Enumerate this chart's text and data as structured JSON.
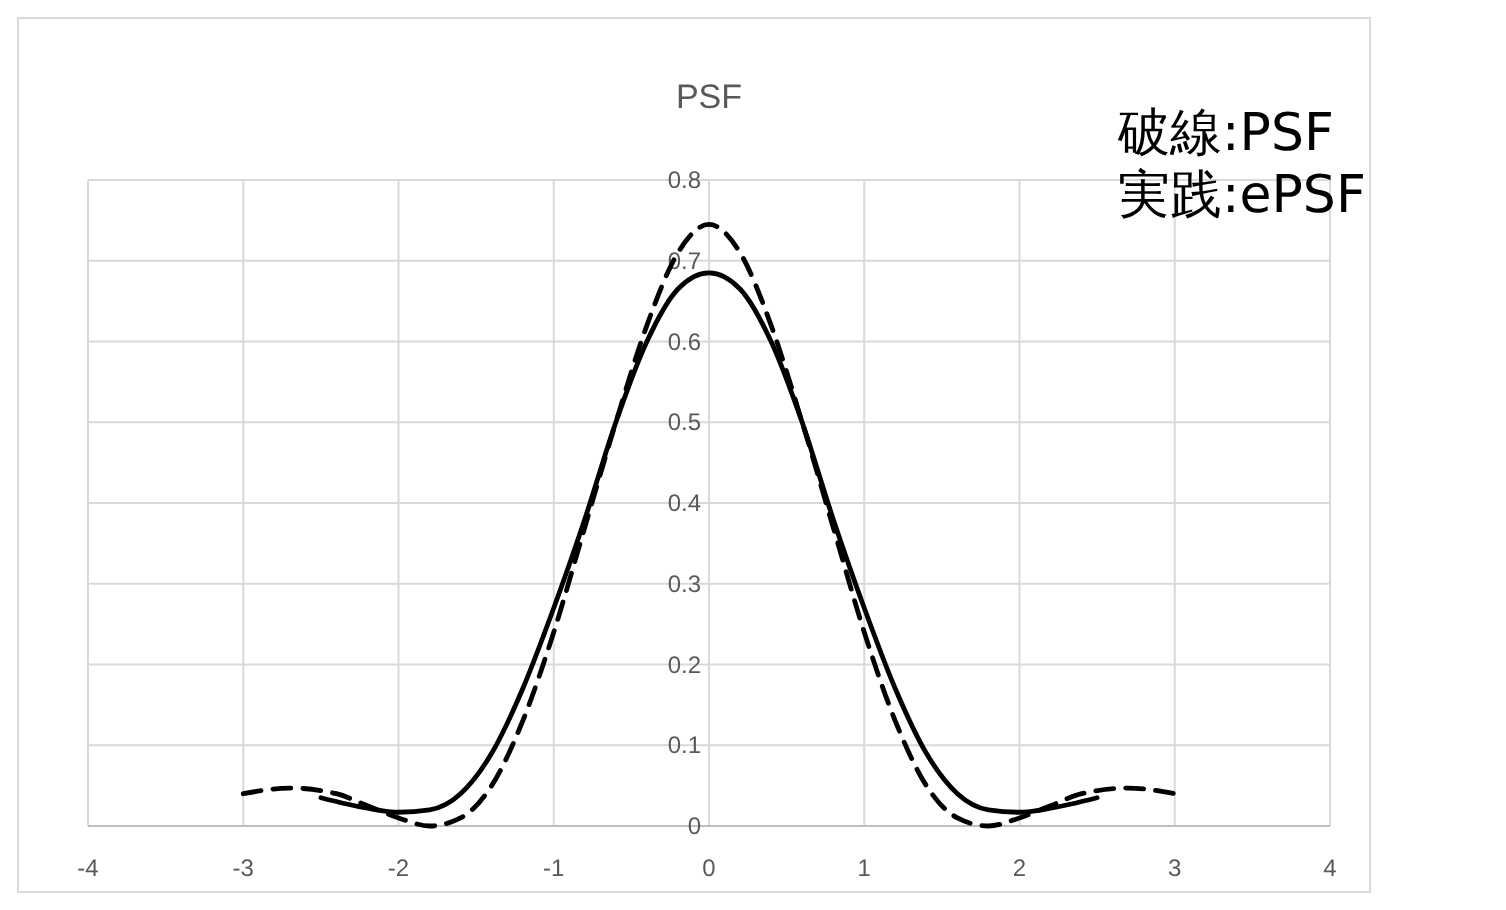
{
  "chart_data": {
    "type": "line",
    "title": "PSF",
    "xlim": [
      -4,
      4
    ],
    "xticks": [
      -4,
      -3,
      -2,
      -1,
      0,
      1,
      2,
      3,
      4
    ],
    "ylim": [
      0,
      0.8
    ],
    "yticks": [
      0,
      0.1,
      0.2,
      0.3,
      0.4,
      0.5,
      0.6,
      0.7,
      0.8
    ],
    "grid": true,
    "marker": "none",
    "annotations": [
      "破線:PSF",
      "実践:ePSF"
    ],
    "series": [
      {
        "color": "#000000",
        "line_style": "dashed",
        "x": [
          -3,
          -2.7,
          -2.4,
          -2.2,
          -2,
          -1.8,
          -1.6,
          -1.4,
          -1.2,
          -1,
          -0.8,
          -0.6,
          -0.4,
          -0.2,
          0,
          0.2,
          0.4,
          0.6,
          0.8,
          1,
          1.2,
          1.4,
          1.6,
          1.8,
          2,
          2.2,
          2.4,
          2.7,
          3
        ],
        "values": [
          0.04,
          0.047,
          0.04,
          0.025,
          0.01,
          0.0,
          0.01,
          0.05,
          0.13,
          0.24,
          0.37,
          0.5,
          0.62,
          0.71,
          0.745,
          0.71,
          0.62,
          0.5,
          0.37,
          0.24,
          0.13,
          0.05,
          0.01,
          0.0,
          0.01,
          0.025,
          0.04,
          0.047,
          0.04
        ]
      },
      {
        "color": "#000000",
        "line_style": "solid",
        "x": [
          -2.5,
          -2.2,
          -2,
          -1.8,
          -1.6,
          -1.4,
          -1.2,
          -1,
          -0.8,
          -0.6,
          -0.4,
          -0.2,
          0,
          0.2,
          0.4,
          0.6,
          0.8,
          1,
          1.2,
          1.4,
          1.6,
          1.8,
          2,
          2.2,
          2.5
        ],
        "values": [
          0.035,
          0.022,
          0.017,
          0.02,
          0.04,
          0.09,
          0.17,
          0.27,
          0.38,
          0.5,
          0.6,
          0.665,
          0.685,
          0.665,
          0.6,
          0.5,
          0.38,
          0.27,
          0.17,
          0.09,
          0.04,
          0.02,
          0.017,
          0.022,
          0.035
        ]
      }
    ]
  }
}
